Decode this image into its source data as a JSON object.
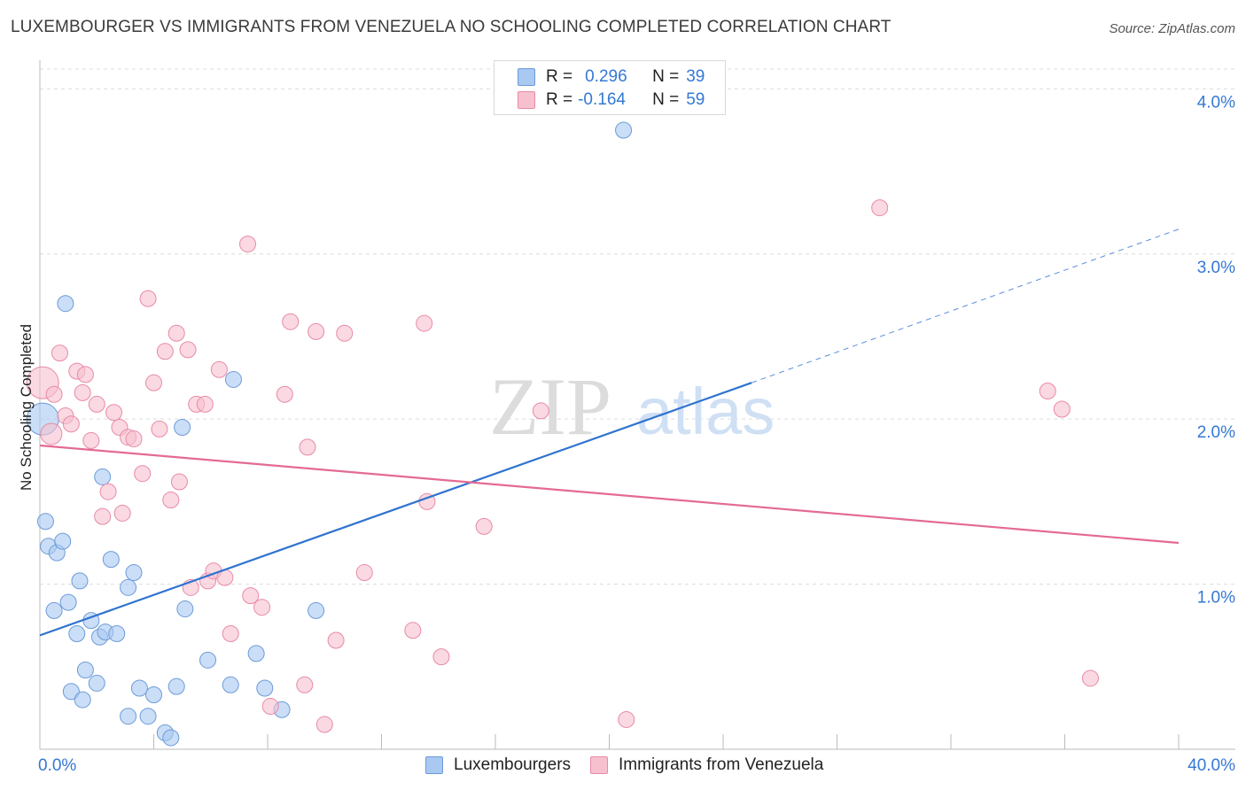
{
  "title": "LUXEMBOURGER VS IMMIGRANTS FROM VENEZUELA NO SCHOOLING COMPLETED CORRELATION CHART",
  "source": "Source: ZipAtlas.com",
  "watermark": {
    "zip": "ZIP",
    "atlas": "atlas"
  },
  "legend": {
    "rows": [
      {
        "r_label": "R =",
        "r_value": "0.296",
        "n_label": "N =",
        "n_value": "39",
        "color": "#a9c8f2",
        "border": "#6c9bd8"
      },
      {
        "r_label": "R =",
        "r_value": "-0.164",
        "n_label": "N =",
        "n_value": "59",
        "color": "#f7c0cf",
        "border": "#e88aa6"
      }
    ]
  },
  "bottom_legend": [
    "Luxembourgers",
    "Immigrants from Venezuela"
  ],
  "chart_data": {
    "type": "scatter",
    "title": "LUXEMBOURGER VS IMMIGRANTS FROM VENEZUELA NO SCHOOLING COMPLETED CORRELATION CHART",
    "xlabel": "",
    "ylabel": "No Schooling Completed",
    "xlim": [
      0,
      40
    ],
    "ylim": [
      0,
      4.12
    ],
    "x_tick_labels": [
      "0.0%",
      "40.0%"
    ],
    "y_ticks": [
      1,
      2,
      3,
      4
    ],
    "y_tick_labels": [
      "1.0%",
      "2.0%",
      "3.0%",
      "4.0%"
    ],
    "grid": true,
    "series": [
      {
        "name": "Luxembourgers",
        "color": "#a9c8f2",
        "edge": "#6c9bd8",
        "trend_color": "#2f73cf",
        "trend": {
          "x0": 0,
          "y0": 0.69,
          "x1": 25,
          "y1": 2.22,
          "dash_to_x": 40,
          "dash_to_y": 3.15
        },
        "points": [
          [
            0.1,
            2.0,
            18
          ],
          [
            0.2,
            1.38,
            9
          ],
          [
            0.3,
            1.23,
            9
          ],
          [
            0.5,
            0.84,
            9
          ],
          [
            0.6,
            1.19,
            9
          ],
          [
            0.8,
            1.26,
            9
          ],
          [
            0.9,
            2.7,
            9
          ],
          [
            1.0,
            0.89,
            9
          ],
          [
            1.1,
            0.35,
            9
          ],
          [
            1.3,
            0.7,
            9
          ],
          [
            1.4,
            1.02,
            9
          ],
          [
            1.5,
            0.3,
            9
          ],
          [
            1.6,
            0.48,
            9
          ],
          [
            1.8,
            0.78,
            9
          ],
          [
            2.0,
            0.4,
            9
          ],
          [
            2.1,
            0.68,
            9
          ],
          [
            2.2,
            1.65,
            9
          ],
          [
            2.3,
            0.71,
            9
          ],
          [
            2.5,
            1.15,
            9
          ],
          [
            2.7,
            0.7,
            9
          ],
          [
            3.1,
            0.2,
            9
          ],
          [
            3.1,
            0.98,
            9
          ],
          [
            3.3,
            1.07,
            9
          ],
          [
            3.5,
            0.37,
            9
          ],
          [
            3.8,
            0.2,
            9
          ],
          [
            4.0,
            0.33,
            9
          ],
          [
            4.4,
            0.1,
            9
          ],
          [
            4.6,
            0.07,
            9
          ],
          [
            4.8,
            0.38,
            9
          ],
          [
            5.0,
            1.95,
            9
          ],
          [
            5.1,
            0.85,
            9
          ],
          [
            5.9,
            0.54,
            9
          ],
          [
            6.7,
            0.39,
            9
          ],
          [
            6.8,
            2.24,
            9
          ],
          [
            7.6,
            0.58,
            9
          ],
          [
            7.9,
            0.37,
            9
          ],
          [
            8.5,
            0.24,
            9
          ],
          [
            9.7,
            0.84,
            9
          ],
          [
            20.5,
            3.75,
            9
          ]
        ]
      },
      {
        "name": "Immigrants from Venezuela",
        "color": "#f7c0cf",
        "edge": "#e88aa6",
        "trend_color": "#e46a93",
        "trend": {
          "x0": 0,
          "y0": 1.84,
          "x1": 40,
          "y1": 1.25
        },
        "points": [
          [
            0.1,
            2.22,
            18
          ],
          [
            0.4,
            1.91,
            12
          ],
          [
            0.5,
            2.15,
            9
          ],
          [
            0.7,
            2.4,
            9
          ],
          [
            0.9,
            2.02,
            9
          ],
          [
            1.1,
            1.97,
            9
          ],
          [
            1.3,
            2.29,
            9
          ],
          [
            1.5,
            2.16,
            9
          ],
          [
            1.6,
            2.27,
            9
          ],
          [
            1.8,
            1.87,
            9
          ],
          [
            2.0,
            2.09,
            9
          ],
          [
            2.2,
            1.41,
            9
          ],
          [
            2.4,
            1.56,
            9
          ],
          [
            2.6,
            2.04,
            9
          ],
          [
            2.8,
            1.95,
            9
          ],
          [
            2.9,
            1.43,
            9
          ],
          [
            3.1,
            1.89,
            9
          ],
          [
            3.3,
            1.88,
            9
          ],
          [
            3.6,
            1.67,
            9
          ],
          [
            3.8,
            2.73,
            9
          ],
          [
            4.0,
            2.22,
            9
          ],
          [
            4.2,
            1.94,
            9
          ],
          [
            4.4,
            2.41,
            9
          ],
          [
            4.6,
            1.51,
            9
          ],
          [
            4.8,
            2.52,
            9
          ],
          [
            4.9,
            1.62,
            9
          ],
          [
            5.2,
            2.42,
            9
          ],
          [
            5.3,
            0.98,
            9
          ],
          [
            5.5,
            2.09,
            9
          ],
          [
            5.8,
            2.09,
            9
          ],
          [
            5.9,
            1.02,
            9
          ],
          [
            6.1,
            1.08,
            9
          ],
          [
            6.3,
            2.3,
            9
          ],
          [
            6.5,
            1.04,
            9
          ],
          [
            6.7,
            0.7,
            9
          ],
          [
            7.3,
            3.06,
            9
          ],
          [
            7.4,
            0.93,
            9
          ],
          [
            7.8,
            0.86,
            9
          ],
          [
            8.1,
            0.26,
            9
          ],
          [
            8.6,
            2.15,
            9
          ],
          [
            8.8,
            2.59,
            9
          ],
          [
            9.3,
            0.39,
            9
          ],
          [
            9.4,
            1.83,
            9
          ],
          [
            9.7,
            2.53,
            9
          ],
          [
            10.0,
            0.15,
            9
          ],
          [
            10.4,
            0.66,
            9
          ],
          [
            10.7,
            2.52,
            9
          ],
          [
            11.4,
            1.07,
            9
          ],
          [
            13.1,
            0.72,
            9
          ],
          [
            13.5,
            2.58,
            9
          ],
          [
            13.6,
            1.5,
            9
          ],
          [
            14.1,
            0.56,
            9
          ],
          [
            15.6,
            1.35,
            9
          ],
          [
            17.6,
            2.05,
            9
          ],
          [
            20.6,
            0.18,
            9
          ],
          [
            29.5,
            3.28,
            9
          ],
          [
            35.4,
            2.17,
            9
          ],
          [
            35.9,
            2.06,
            9
          ],
          [
            36.9,
            0.43,
            9
          ]
        ]
      }
    ]
  }
}
